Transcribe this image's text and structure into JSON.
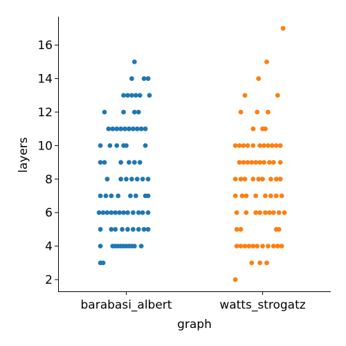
{
  "chart_data": {
    "type": "scatter",
    "subtype": "strip",
    "xlabel": "graph",
    "ylabel": "layers",
    "categories": [
      "barabasi_albert",
      "watts_strogatz"
    ],
    "ylim": [
      1.3,
      17.7
    ],
    "yticks": [
      2,
      4,
      6,
      8,
      10,
      12,
      14,
      16
    ],
    "grid": false,
    "legend": "none",
    "series": [
      {
        "category": "barabasi_albert",
        "color": "#1f77b4",
        "points": [
          {
            "y": 3,
            "jitter": -0.19
          },
          {
            "y": 3,
            "jitter": -0.17
          },
          {
            "y": 4,
            "jitter": -0.19
          },
          {
            "y": 4,
            "jitter": -0.1
          },
          {
            "y": 4,
            "jitter": -0.08
          },
          {
            "y": 4,
            "jitter": -0.06
          },
          {
            "y": 4,
            "jitter": -0.04
          },
          {
            "y": 4,
            "jitter": -0.02
          },
          {
            "y": 4,
            "jitter": 0.0
          },
          {
            "y": 4,
            "jitter": 0.02
          },
          {
            "y": 4,
            "jitter": 0.04
          },
          {
            "y": 4,
            "jitter": 0.06
          },
          {
            "y": 4,
            "jitter": 0.11
          },
          {
            "y": 5,
            "jitter": -0.19
          },
          {
            "y": 5,
            "jitter": -0.11
          },
          {
            "y": 5,
            "jitter": -0.08
          },
          {
            "y": 5,
            "jitter": -0.03
          },
          {
            "y": 5,
            "jitter": 0.01
          },
          {
            "y": 5,
            "jitter": 0.05
          },
          {
            "y": 5,
            "jitter": 0.09
          },
          {
            "y": 5,
            "jitter": 0.13
          },
          {
            "y": 5,
            "jitter": 0.16
          },
          {
            "y": 6,
            "jitter": -0.2
          },
          {
            "y": 6,
            "jitter": -0.17
          },
          {
            "y": 6,
            "jitter": -0.14
          },
          {
            "y": 6,
            "jitter": -0.11
          },
          {
            "y": 6,
            "jitter": -0.08
          },
          {
            "y": 6,
            "jitter": -0.05
          },
          {
            "y": 6,
            "jitter": -0.02
          },
          {
            "y": 6,
            "jitter": 0.01
          },
          {
            "y": 6,
            "jitter": 0.05
          },
          {
            "y": 6,
            "jitter": 0.09
          },
          {
            "y": 6,
            "jitter": 0.12
          },
          {
            "y": 6,
            "jitter": 0.16
          },
          {
            "y": 7,
            "jitter": -0.19
          },
          {
            "y": 7,
            "jitter": -0.15
          },
          {
            "y": 7,
            "jitter": -0.11
          },
          {
            "y": 7,
            "jitter": -0.06
          },
          {
            "y": 7,
            "jitter": 0.03
          },
          {
            "y": 7,
            "jitter": 0.07
          },
          {
            "y": 7,
            "jitter": 0.14
          },
          {
            "y": 7,
            "jitter": 0.16
          },
          {
            "y": 8,
            "jitter": -0.14
          },
          {
            "y": 8,
            "jitter": -0.04
          },
          {
            "y": 8,
            "jitter": 0.0
          },
          {
            "y": 8,
            "jitter": 0.04
          },
          {
            "y": 8,
            "jitter": 0.08
          },
          {
            "y": 8,
            "jitter": 0.12
          },
          {
            "y": 8,
            "jitter": 0.16
          },
          {
            "y": 9,
            "jitter": -0.19
          },
          {
            "y": 9,
            "jitter": -0.16
          },
          {
            "y": 9,
            "jitter": -0.04
          },
          {
            "y": 9,
            "jitter": 0.02
          },
          {
            "y": 9,
            "jitter": 0.06
          },
          {
            "y": 9,
            "jitter": 0.1
          },
          {
            "y": 10,
            "jitter": -0.19
          },
          {
            "y": 10,
            "jitter": -0.12
          },
          {
            "y": 10,
            "jitter": -0.07
          },
          {
            "y": 10,
            "jitter": -0.02
          },
          {
            "y": 10,
            "jitter": 0.0
          },
          {
            "y": 10,
            "jitter": 0.14
          },
          {
            "y": 11,
            "jitter": -0.13
          },
          {
            "y": 11,
            "jitter": -0.1
          },
          {
            "y": 11,
            "jitter": -0.07
          },
          {
            "y": 11,
            "jitter": -0.04
          },
          {
            "y": 11,
            "jitter": -0.01
          },
          {
            "y": 11,
            "jitter": 0.02
          },
          {
            "y": 11,
            "jitter": 0.05
          },
          {
            "y": 11,
            "jitter": 0.08
          },
          {
            "y": 11,
            "jitter": 0.11
          },
          {
            "y": 11,
            "jitter": 0.14
          },
          {
            "y": 12,
            "jitter": -0.16
          },
          {
            "y": 12,
            "jitter": -0.02
          },
          {
            "y": 12,
            "jitter": 0.06
          },
          {
            "y": 12,
            "jitter": 0.09
          },
          {
            "y": 13,
            "jitter": -0.02
          },
          {
            "y": 13,
            "jitter": 0.01
          },
          {
            "y": 13,
            "jitter": 0.04
          },
          {
            "y": 13,
            "jitter": 0.07
          },
          {
            "y": 13,
            "jitter": 0.1
          },
          {
            "y": 13,
            "jitter": 0.17
          },
          {
            "y": 14,
            "jitter": 0.04
          },
          {
            "y": 14,
            "jitter": 0.13
          },
          {
            "y": 14,
            "jitter": 0.16
          },
          {
            "y": 15,
            "jitter": 0.06
          }
        ]
      },
      {
        "category": "watts_strogatz",
        "color": "#ff7f0e",
        "points": [
          {
            "y": 2,
            "jitter": -0.2
          },
          {
            "y": 3,
            "jitter": -0.08
          },
          {
            "y": 3,
            "jitter": -0.02
          },
          {
            "y": 3,
            "jitter": 0.03
          },
          {
            "y": 4,
            "jitter": -0.19
          },
          {
            "y": 4,
            "jitter": -0.16
          },
          {
            "y": 4,
            "jitter": -0.13
          },
          {
            "y": 4,
            "jitter": -0.1
          },
          {
            "y": 4,
            "jitter": -0.07
          },
          {
            "y": 4,
            "jitter": -0.04
          },
          {
            "y": 4,
            "jitter": 0.0
          },
          {
            "y": 4,
            "jitter": 0.04
          },
          {
            "y": 4,
            "jitter": 0.08
          },
          {
            "y": 4,
            "jitter": 0.11
          },
          {
            "y": 4,
            "jitter": 0.14
          },
          {
            "y": 5,
            "jitter": -0.19
          },
          {
            "y": 5,
            "jitter": -0.16
          },
          {
            "y": 5,
            "jitter": 0.1
          },
          {
            "y": 5,
            "jitter": 0.12
          },
          {
            "y": 6,
            "jitter": -0.19
          },
          {
            "y": 6,
            "jitter": -0.12
          },
          {
            "y": 6,
            "jitter": -0.05
          },
          {
            "y": 6,
            "jitter": -0.02
          },
          {
            "y": 6,
            "jitter": 0.02
          },
          {
            "y": 6,
            "jitter": 0.05
          },
          {
            "y": 6,
            "jitter": 0.08
          },
          {
            "y": 6,
            "jitter": 0.12
          },
          {
            "y": 6,
            "jitter": 0.16
          },
          {
            "y": 7,
            "jitter": -0.2
          },
          {
            "y": 7,
            "jitter": -0.15
          },
          {
            "y": 7,
            "jitter": -0.12
          },
          {
            "y": 7,
            "jitter": -0.05
          },
          {
            "y": 7,
            "jitter": 0.02
          },
          {
            "y": 7,
            "jitter": 0.06
          },
          {
            "y": 7,
            "jitter": 0.1
          },
          {
            "y": 7,
            "jitter": 0.14
          },
          {
            "y": 8,
            "jitter": -0.2
          },
          {
            "y": 8,
            "jitter": -0.16
          },
          {
            "y": 8,
            "jitter": -0.13
          },
          {
            "y": 8,
            "jitter": -0.07
          },
          {
            "y": 8,
            "jitter": -0.03
          },
          {
            "y": 8,
            "jitter": 0.0
          },
          {
            "y": 8,
            "jitter": 0.06
          },
          {
            "y": 8,
            "jitter": 0.1
          },
          {
            "y": 8,
            "jitter": 0.13
          },
          {
            "y": 9,
            "jitter": -0.17
          },
          {
            "y": 9,
            "jitter": -0.14
          },
          {
            "y": 9,
            "jitter": -0.11
          },
          {
            "y": 9,
            "jitter": -0.08
          },
          {
            "y": 9,
            "jitter": -0.05
          },
          {
            "y": 9,
            "jitter": -0.02
          },
          {
            "y": 9,
            "jitter": 0.01
          },
          {
            "y": 9,
            "jitter": 0.05
          },
          {
            "y": 9,
            "jitter": 0.08
          },
          {
            "y": 9,
            "jitter": 0.13
          },
          {
            "y": 10,
            "jitter": -0.2
          },
          {
            "y": 10,
            "jitter": -0.17
          },
          {
            "y": 10,
            "jitter": -0.14
          },
          {
            "y": 10,
            "jitter": -0.11
          },
          {
            "y": 10,
            "jitter": -0.07
          },
          {
            "y": 10,
            "jitter": -0.02
          },
          {
            "y": 10,
            "jitter": 0.01
          },
          {
            "y": 10,
            "jitter": 0.04
          },
          {
            "y": 10,
            "jitter": 0.07
          },
          {
            "y": 10,
            "jitter": 0.1
          },
          {
            "y": 10,
            "jitter": 0.13
          },
          {
            "y": 11,
            "jitter": -0.07
          },
          {
            "y": 11,
            "jitter": 0.0
          },
          {
            "y": 11,
            "jitter": 0.02
          },
          {
            "y": 12,
            "jitter": -0.16
          },
          {
            "y": 12,
            "jitter": -0.04
          },
          {
            "y": 12,
            "jitter": 0.04
          },
          {
            "y": 13,
            "jitter": -0.13
          },
          {
            "y": 13,
            "jitter": 0.11
          },
          {
            "y": 14,
            "jitter": -0.03
          },
          {
            "y": 15,
            "jitter": 0.03
          },
          {
            "y": 17,
            "jitter": 0.15
          }
        ]
      }
    ]
  }
}
